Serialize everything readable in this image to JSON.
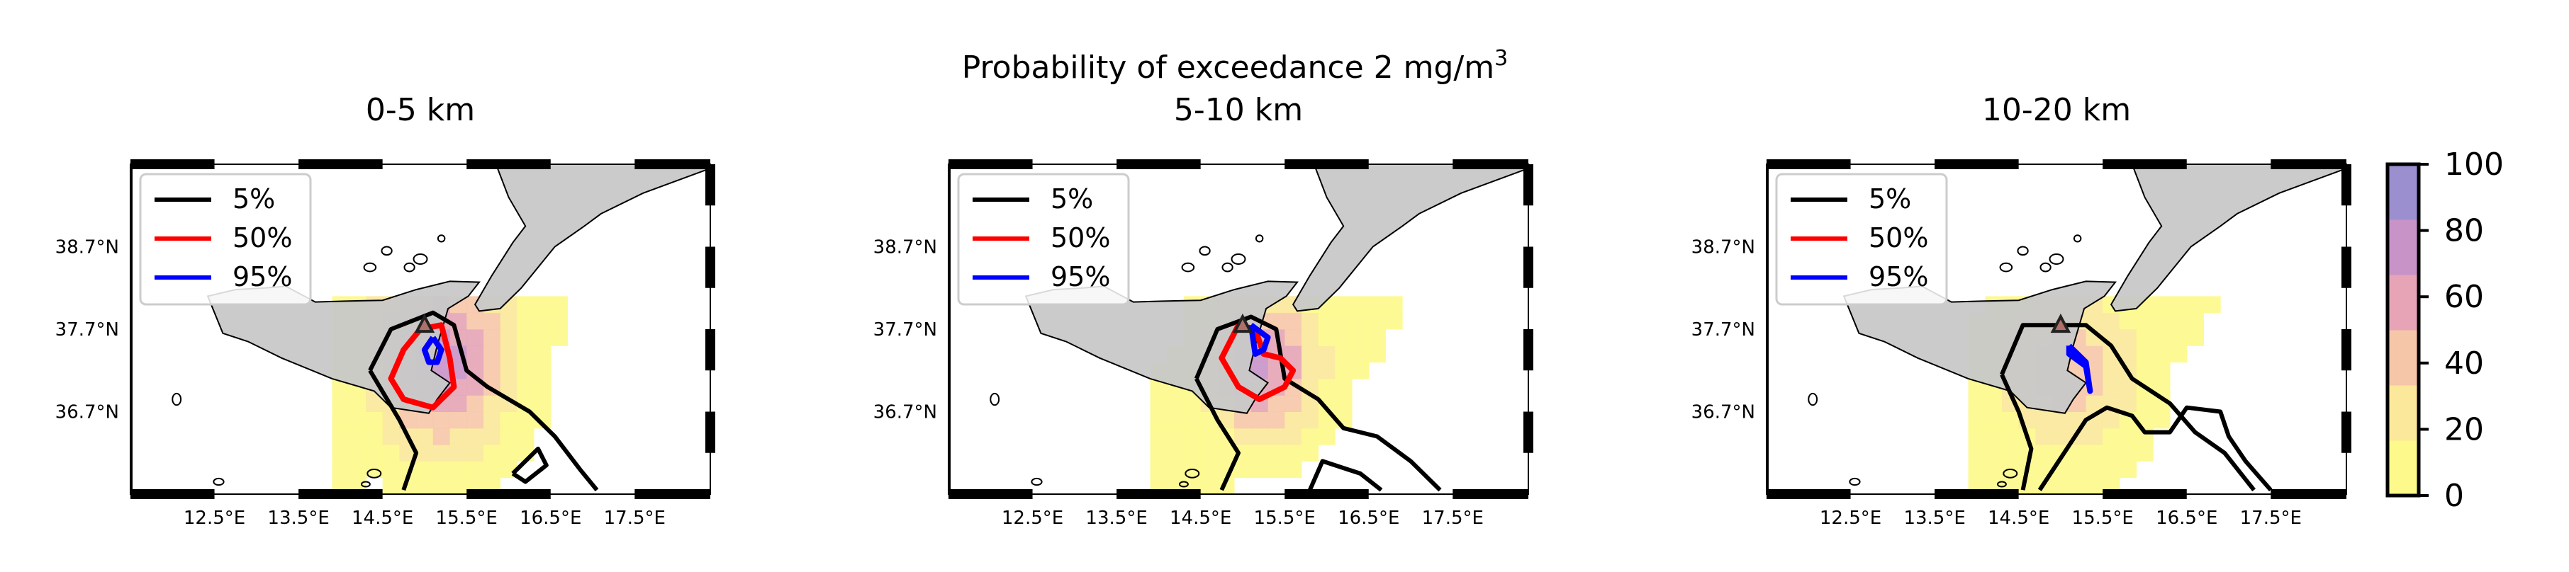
{
  "figure": {
    "suptitle_line1": "Probability of exceedance 2 mg/m",
    "suptitle_sup": "3",
    "colors": {
      "sea": "#ffffff",
      "land": "#c8c8c8",
      "contour_5": "#000000",
      "contour_50": "#ff0000",
      "contour_95": "#0000ff"
    }
  },
  "legend": {
    "entries": [
      {
        "label": "5%",
        "color": "#000000"
      },
      {
        "label": "50%",
        "color": "#ff0000"
      },
      {
        "label": "95%",
        "color": "#0000ff"
      }
    ]
  },
  "colorbar": {
    "ticks": [
      "0",
      "20",
      "40",
      "60",
      "80",
      "100"
    ],
    "range": [
      0,
      100
    ],
    "colors": [
      "#fdf98a",
      "#fbe89a",
      "#f6c6a8",
      "#e6a4b6",
      "#c894c8",
      "#9b8fd0"
    ]
  },
  "axes": {
    "lon_ticks": [
      "12.5°E",
      "13.5°E",
      "14.5°E",
      "15.5°E",
      "16.5°E",
      "17.5°E"
    ],
    "lat_ticks": [
      "38.7°N",
      "37.7°N",
      "36.7°N"
    ]
  },
  "chart_data": [
    {
      "type": "heatmap",
      "title": "0-5 km",
      "variable": "Probability of exceedance 2 mg/m3 (%)",
      "xlabel": "",
      "ylabel": "",
      "xlim": [
        11.5,
        18.4
      ],
      "ylim": [
        35.7,
        39.7
      ],
      "xticks": [
        12.5,
        13.5,
        14.5,
        15.5,
        16.5,
        17.5
      ],
      "yticks": [
        38.7,
        37.7,
        36.7
      ],
      "vent": [
        15.0,
        37.75
      ],
      "legend": [
        "5%",
        "50%",
        "95%"
      ],
      "plume": {
        "center": [
          15.2,
          37.35
        ],
        "peak": 75,
        "spread": [
          0.55,
          0.75
        ],
        "tail_spread": [
          1.2,
          1.1
        ]
      },
      "contours": {
        "5%": [
          [
            [
              14.35,
              37.2
            ],
            [
              14.6,
              37.7
            ],
            [
              15.1,
              37.9
            ],
            [
              15.35,
              37.75
            ],
            [
              15.5,
              37.2
            ],
            [
              15.75,
              37.0
            ],
            [
              16.25,
              36.7
            ],
            [
              16.55,
              36.4
            ],
            [
              16.85,
              36.0
            ],
            [
              17.05,
              35.75
            ]
          ],
          [
            [
              14.75,
              35.75
            ],
            [
              14.9,
              36.2
            ],
            [
              14.7,
              36.6
            ],
            [
              14.35,
              37.2
            ]
          ],
          [
            [
              16.05,
              35.95
            ],
            [
              16.35,
              36.25
            ],
            [
              16.45,
              36.05
            ],
            [
              16.2,
              35.85
            ],
            [
              16.05,
              35.95
            ]
          ]
        ],
        "50%": [
          [
            [
              14.95,
              37.7
            ],
            [
              15.2,
              37.75
            ],
            [
              15.3,
              37.35
            ],
            [
              15.35,
              37.0
            ],
            [
              15.1,
              36.75
            ],
            [
              14.75,
              36.85
            ],
            [
              14.6,
              37.1
            ],
            [
              14.75,
              37.45
            ],
            [
              14.95,
              37.7
            ]
          ]
        ],
        "95%": [
          [
            [
              15.1,
              37.6
            ],
            [
              15.2,
              37.45
            ],
            [
              15.15,
              37.3
            ],
            [
              15.05,
              37.3
            ],
            [
              15.0,
              37.45
            ],
            [
              15.1,
              37.6
            ]
          ]
        ]
      }
    },
    {
      "type": "heatmap",
      "title": "5-10 km",
      "variable": "Probability of exceedance 2 mg/m3 (%)",
      "xlabel": "",
      "ylabel": "",
      "xlim": [
        11.5,
        18.4
      ],
      "ylim": [
        35.7,
        39.7
      ],
      "xticks": [
        12.5,
        13.5,
        14.5,
        15.5,
        16.5,
        17.5
      ],
      "yticks": [
        38.7,
        37.7,
        36.7
      ],
      "vent": [
        15.0,
        37.75
      ],
      "legend": [
        "5%",
        "50%",
        "95%"
      ],
      "plume": {
        "center": [
          15.25,
          37.25
        ],
        "peak": 70,
        "spread": [
          0.45,
          0.6
        ],
        "tail_spread": [
          1.3,
          1.2
        ]
      },
      "contours": {
        "5%": [
          [
            [
              14.45,
              37.1
            ],
            [
              14.7,
              37.7
            ],
            [
              15.1,
              37.85
            ],
            [
              15.4,
              37.7
            ],
            [
              15.5,
              37.1
            ],
            [
              15.9,
              36.85
            ],
            [
              16.2,
              36.5
            ],
            [
              16.6,
              36.4
            ],
            [
              17.0,
              36.1
            ],
            [
              17.35,
              35.75
            ]
          ],
          [
            [
              14.75,
              35.75
            ],
            [
              14.95,
              36.2
            ],
            [
              14.7,
              36.6
            ],
            [
              14.45,
              37.1
            ]
          ],
          [
            [
              15.8,
              35.75
            ],
            [
              15.95,
              36.1
            ],
            [
              16.4,
              35.95
            ],
            [
              16.65,
              35.75
            ]
          ]
        ],
        "50%": [
          [
            [
              14.95,
              37.75
            ],
            [
              15.15,
              37.7
            ],
            [
              15.25,
              37.4
            ],
            [
              15.45,
              37.35
            ],
            [
              15.6,
              37.2
            ],
            [
              15.5,
              37.0
            ],
            [
              15.2,
              36.85
            ],
            [
              14.95,
              37.0
            ],
            [
              14.75,
              37.35
            ],
            [
              14.95,
              37.75
            ]
          ]
        ],
        "95%": [
          [
            [
              15.1,
              37.75
            ],
            [
              15.3,
              37.6
            ],
            [
              15.25,
              37.45
            ],
            [
              15.15,
              37.4
            ],
            [
              15.1,
              37.75
            ]
          ]
        ]
      }
    },
    {
      "type": "heatmap",
      "title": "10-20 km",
      "variable": "Probability of exceedance 2 mg/m3 (%)",
      "xlabel": "",
      "ylabel": "",
      "xlim": [
        11.5,
        18.4
      ],
      "ylim": [
        35.7,
        39.7
      ],
      "xticks": [
        12.5,
        13.5,
        14.5,
        15.5,
        16.5,
        17.5
      ],
      "yticks": [
        38.7,
        37.7,
        36.7
      ],
      "vent": [
        15.0,
        37.75
      ],
      "legend": [
        "5%",
        "50%",
        "95%"
      ],
      "plume": {
        "center": [
          15.1,
          37.2
        ],
        "peak": 45,
        "spread": [
          0.55,
          0.7
        ],
        "tail_spread": [
          1.4,
          1.2
        ]
      },
      "contours": {
        "5%": [
          [
            [
              14.3,
              37.15
            ],
            [
              14.55,
              37.75
            ],
            [
              15.3,
              37.75
            ],
            [
              15.6,
              37.5
            ],
            [
              15.85,
              37.1
            ],
            [
              16.3,
              36.8
            ],
            [
              16.6,
              36.45
            ],
            [
              16.95,
              36.2
            ],
            [
              17.3,
              35.75
            ]
          ],
          [
            [
              14.55,
              35.75
            ],
            [
              14.65,
              36.25
            ],
            [
              14.5,
              36.7
            ],
            [
              14.3,
              37.15
            ]
          ],
          [
            [
              14.75,
              35.75
            ],
            [
              15.3,
              36.6
            ],
            [
              15.55,
              36.75
            ],
            [
              15.85,
              36.65
            ],
            [
              16.0,
              36.45
            ],
            [
              16.3,
              36.45
            ],
            [
              16.5,
              36.75
            ],
            [
              16.9,
              36.7
            ],
            [
              17.0,
              36.4
            ],
            [
              17.2,
              36.1
            ],
            [
              17.5,
              35.75
            ]
          ]
        ],
        "50%": [],
        "95%": [
          [
            [
              15.1,
              37.5
            ],
            [
              15.3,
              37.3
            ],
            [
              15.35,
              36.95
            ],
            [
              15.3,
              37.25
            ],
            [
              15.1,
              37.4
            ],
            [
              15.1,
              37.5
            ]
          ]
        ]
      }
    }
  ]
}
